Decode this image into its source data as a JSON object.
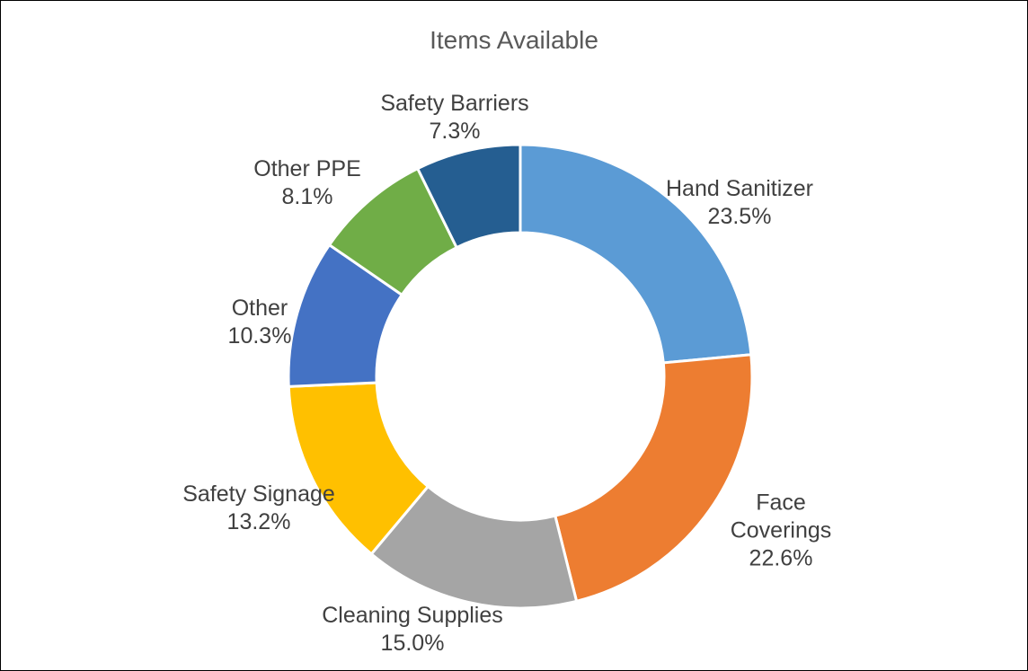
{
  "chart_data": {
    "type": "donut",
    "title": "Items Available",
    "categories": [
      "Hand Sanitizer",
      "Face Coverings",
      "Cleaning Supplies",
      "Safety Signage",
      "Other",
      "Other PPE",
      "Safety Barriers"
    ],
    "values": [
      23.5,
      22.6,
      15.0,
      13.2,
      10.3,
      8.1,
      7.3
    ],
    "value_labels": [
      "23.5%",
      "22.6%",
      "15.0%",
      "13.2%",
      "10.3%",
      "8.1%",
      "7.3%"
    ],
    "colors": [
      "#5b9bd5",
      "#ed7d31",
      "#a5a5a5",
      "#ffc000",
      "#4472c4",
      "#70ad47",
      "#255e91"
    ]
  }
}
